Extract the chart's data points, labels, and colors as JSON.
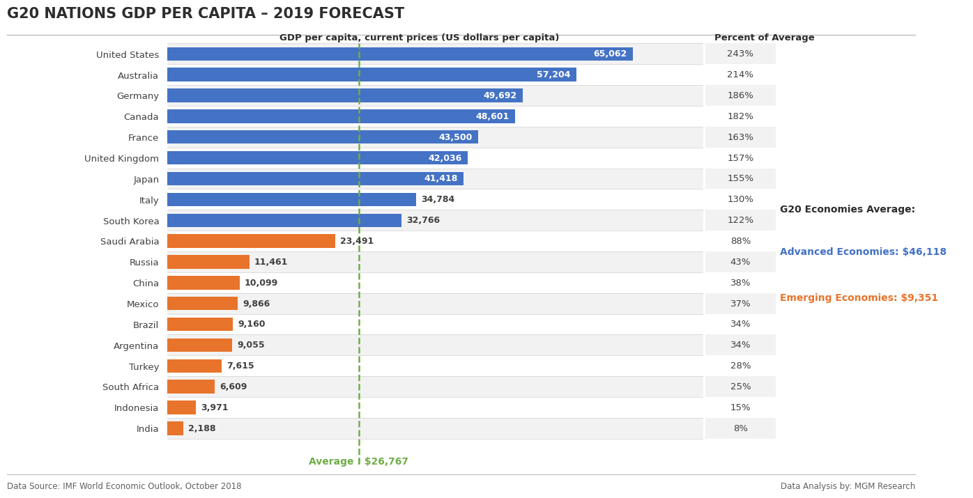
{
  "title": "G20 NATIONS GDP PER CAPITA – 2019 FORECAST",
  "subtitle": "GDP per capita, current prices (US dollars per capita)",
  "subtitle2": "Percent of Average",
  "countries": [
    "United States",
    "Australia",
    "Germany",
    "Canada",
    "France",
    "United Kingdom",
    "Japan",
    "Italy",
    "South Korea",
    "Saudi Arabia",
    "Russia",
    "China",
    "Mexico",
    "Brazil",
    "Argentina",
    "Turkey",
    "South Africa",
    "Indonesia",
    "India"
  ],
  "values": [
    65062,
    57204,
    49692,
    48601,
    43500,
    42036,
    41418,
    34784,
    32766,
    23491,
    11461,
    10099,
    9866,
    9160,
    9055,
    7615,
    6609,
    3971,
    2188
  ],
  "percents": [
    "243%",
    "214%",
    "186%",
    "182%",
    "163%",
    "157%",
    "155%",
    "130%",
    "122%",
    "88%",
    "43%",
    "38%",
    "37%",
    "34%",
    "34%",
    "28%",
    "25%",
    "15%",
    "8%"
  ],
  "colors": [
    "#4472C4",
    "#4472C4",
    "#4472C4",
    "#4472C4",
    "#4472C4",
    "#4472C4",
    "#4472C4",
    "#4472C4",
    "#4472C4",
    "#E8732A",
    "#E8732A",
    "#E8732A",
    "#E8732A",
    "#E8732A",
    "#E8732A",
    "#E8732A",
    "#E8732A",
    "#E8732A",
    "#E8732A"
  ],
  "average_line": 26767,
  "average_label": "Average : $26,767",
  "blue_color": "#4472C4",
  "orange_color": "#E8732A",
  "green_color": "#70AD47",
  "legend_title": "G20 Economies Average:",
  "legend_advanced": "Advanced Economies: $46,118",
  "legend_emerging": "Emerging Economies: $9,351",
  "footer_left": "Data Source: IMF World Economic Outlook, October 2018",
  "footer_right": "Data Analysis by: MGM Research",
  "bg_color": "#FFFFFF",
  "row_alt_color": "#F2F2F2",
  "value_labels": [
    "65,062",
    "57,204",
    "49,692",
    "48,601",
    "43,500",
    "42,036",
    "41,418",
    "34,784",
    "32,766",
    "23,491",
    "11,461",
    "10,099",
    "9,866",
    "9,160",
    "9,055",
    "7,615",
    "6,609",
    "3,971",
    "2,188"
  ],
  "inside_label_threshold": 40000,
  "xlim_max": 75000,
  "bar_height": 0.65
}
